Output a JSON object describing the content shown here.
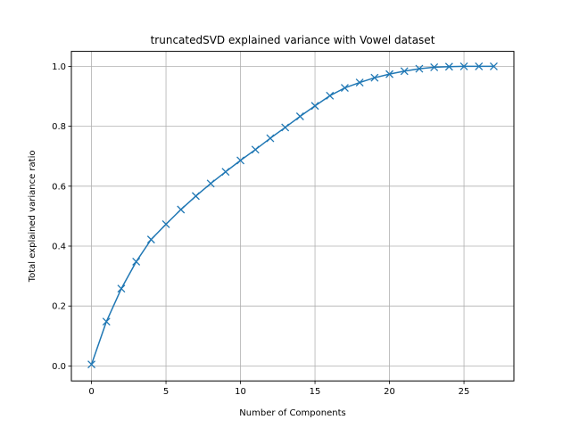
{
  "chart_data": {
    "type": "line",
    "title": "truncatedSVD explained variance with Vowel dataset",
    "xlabel": "Number of Components",
    "ylabel": "Total explained variance ratio",
    "xlim": [
      -1.35,
      28.35
    ],
    "ylim": [
      -0.05,
      1.05
    ],
    "grid": true,
    "x_ticks": [
      0,
      5,
      10,
      15,
      20,
      25
    ],
    "x_tick_labels": [
      "0",
      "5",
      "10",
      "15",
      "20",
      "25"
    ],
    "y_ticks": [
      0.0,
      0.2,
      0.4,
      0.6,
      0.8,
      1.0
    ],
    "y_tick_labels": [
      "0.0",
      "0.2",
      "0.4",
      "0.6",
      "0.8",
      "1.0"
    ],
    "marker": "x",
    "color": "#1f77b4",
    "x": [
      0,
      1,
      2,
      3,
      4,
      5,
      6,
      7,
      8,
      9,
      10,
      11,
      12,
      13,
      14,
      15,
      16,
      17,
      18,
      19,
      20,
      21,
      22,
      23,
      24,
      25,
      26,
      27
    ],
    "values": [
      0.005,
      0.148,
      0.258,
      0.348,
      0.422,
      0.473,
      0.522,
      0.567,
      0.609,
      0.648,
      0.686,
      0.722,
      0.76,
      0.796,
      0.833,
      0.868,
      0.902,
      0.928,
      0.946,
      0.962,
      0.974,
      0.984,
      0.992,
      0.997,
      0.999,
      1.0,
      1.0,
      1.0
    ]
  }
}
